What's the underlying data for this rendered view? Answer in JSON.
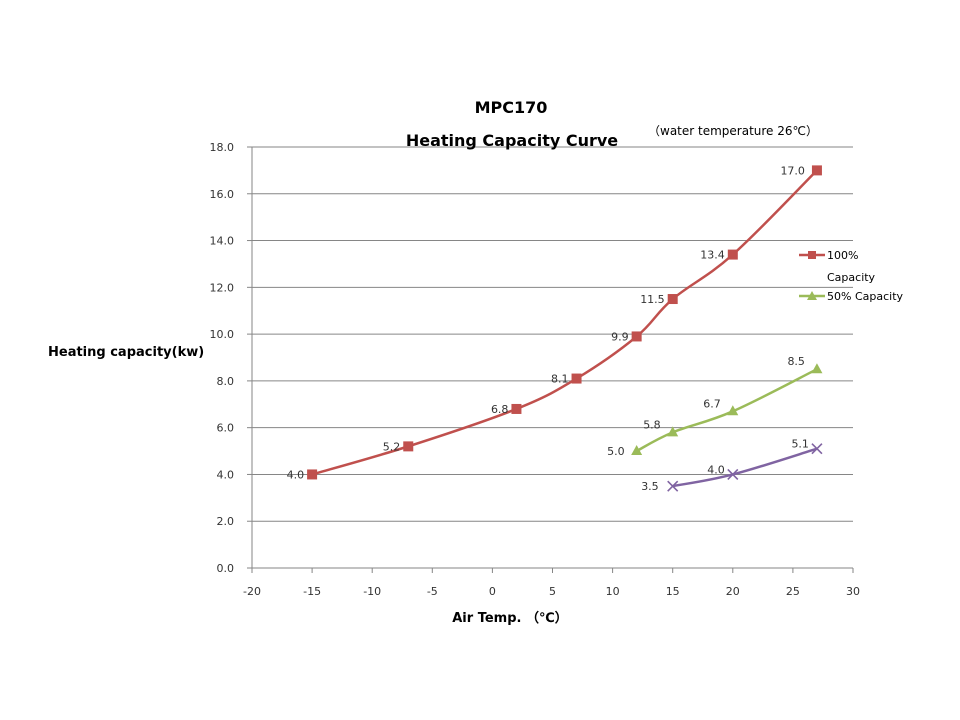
{
  "chart_data": {
    "type": "line",
    "title": "MPC170",
    "subtitle": "Heating Capacity Curve",
    "annotation": "（water temperature 26℃）",
    "xlabel": "Air Temp. （℃）",
    "ylabel": "Heating capacity(kw)",
    "xlim": [
      -20,
      30
    ],
    "ylim": [
      0,
      18
    ],
    "x_ticks": [
      "-20",
      "-15",
      "-10",
      "-5",
      "0",
      "5",
      "10",
      "15",
      "20",
      "25",
      "30"
    ],
    "y_ticks": [
      "0.0",
      "2.0",
      "4.0",
      "6.0",
      "8.0",
      "10.0",
      "12.0",
      "14.0",
      "16.0",
      "18.0"
    ],
    "grid": "horizontal",
    "legend_position": "right",
    "series": [
      {
        "name": "100% Capacity",
        "color": "#C0504D",
        "marker": "square",
        "x": [
          -15,
          -7,
          2,
          7,
          12,
          15,
          20,
          27
        ],
        "y": [
          4.0,
          5.2,
          6.8,
          8.1,
          9.9,
          11.5,
          13.4,
          17.0
        ],
        "labels": [
          "4.0",
          "5.2",
          "6.8",
          "8.1",
          "9.9",
          "11.5",
          "13.4",
          "17.0"
        ]
      },
      {
        "name": "50% Capacity",
        "color": "#9BBB59",
        "marker": "triangle",
        "x": [
          12,
          15,
          20,
          27
        ],
        "y": [
          5.0,
          5.8,
          6.7,
          8.5
        ],
        "labels": [
          "5.0",
          "5.8",
          "6.7",
          "8.5"
        ]
      },
      {
        "name": "",
        "color": "#8064A2",
        "marker": "x",
        "x": [
          15,
          20,
          27
        ],
        "y": [
          3.5,
          4.0,
          5.1
        ],
        "labels": [
          "3.5",
          "4.0",
          "5.1"
        ]
      }
    ]
  }
}
